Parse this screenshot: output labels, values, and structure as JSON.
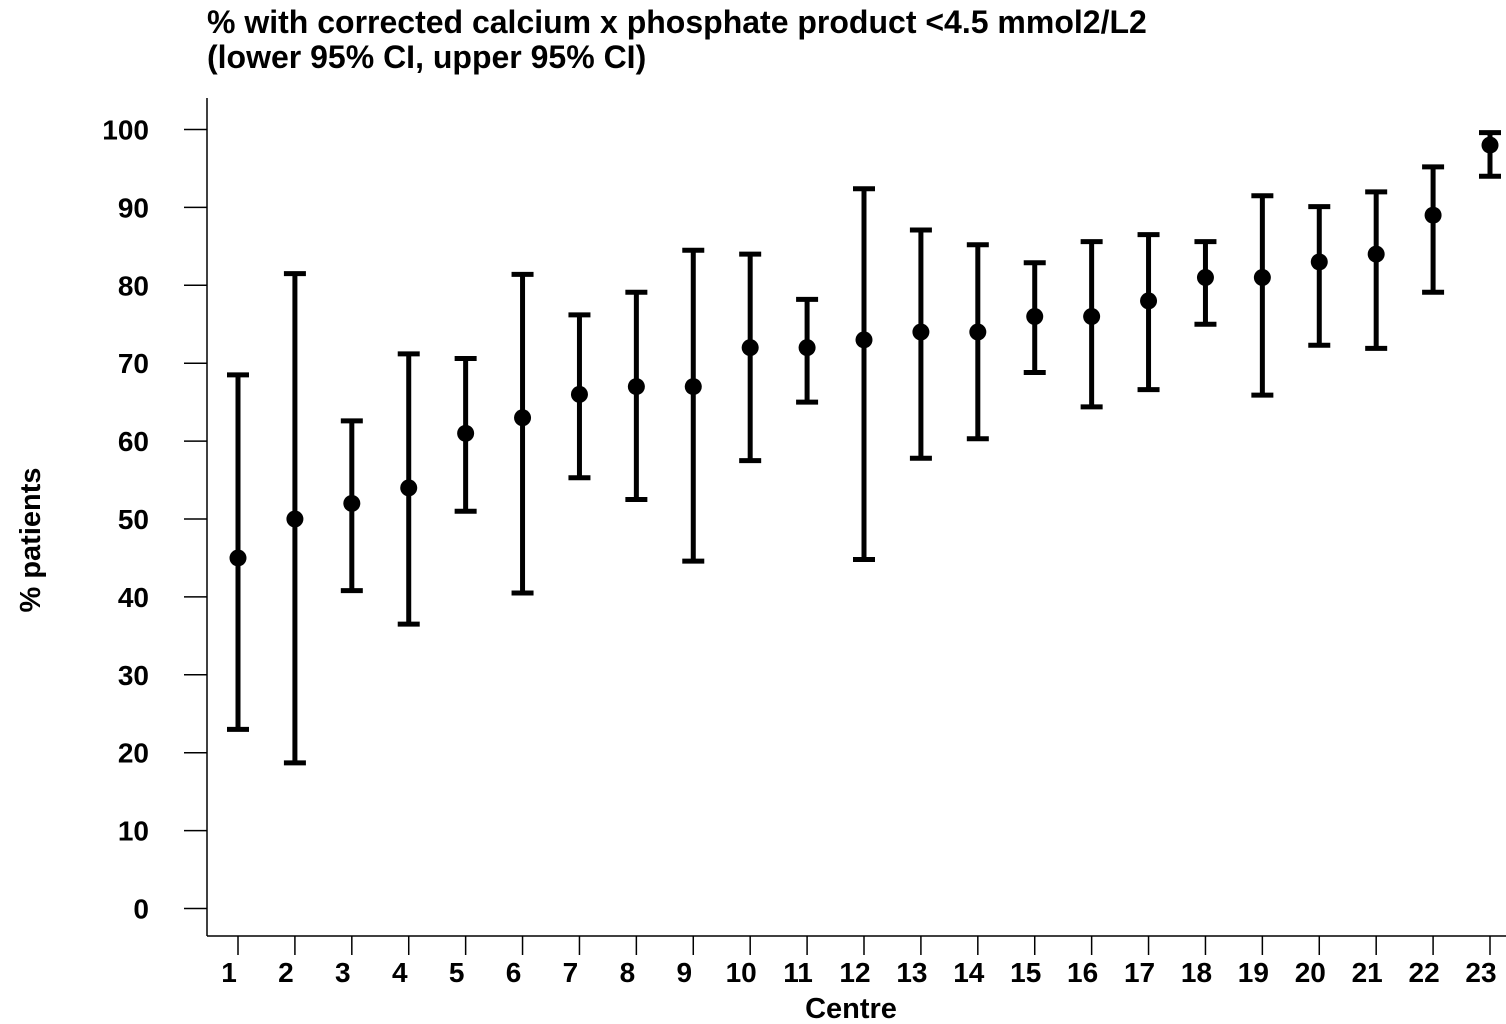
{
  "chart_data": {
    "type": "scatter",
    "title": "% with corrected calcium x phosphate product <4.5 mmol2/L2",
    "subtitle": "(lower 95% CI, upper 95% CI)",
    "xlabel": "Centre",
    "ylabel": "% patients",
    "ylim": [
      0,
      100
    ],
    "yticks": [
      0,
      10,
      20,
      30,
      40,
      50,
      60,
      70,
      80,
      90,
      100
    ],
    "grid": false,
    "categories": [
      "1",
      "2",
      "3",
      "4",
      "5",
      "6",
      "7",
      "8",
      "9",
      "10",
      "11",
      "12",
      "13",
      "14",
      "15",
      "16",
      "17",
      "18",
      "19",
      "20",
      "21",
      "22",
      "23"
    ],
    "values": [
      45,
      50,
      52,
      54,
      61,
      63,
      66,
      67,
      67,
      72,
      72,
      73,
      74,
      74,
      76,
      76,
      78,
      81,
      81,
      83,
      84,
      89,
      98
    ],
    "lower_ci": [
      23,
      18.7,
      40.8,
      36.5,
      51,
      40.5,
      55.3,
      52.5,
      44.6,
      57.5,
      65,
      44.8,
      57.8,
      60.3,
      68.8,
      64.4,
      66.6,
      75,
      65.9,
      72.3,
      71.9,
      79.1,
      94
    ],
    "upper_ci": [
      68.5,
      81.5,
      62.6,
      71.2,
      70.6,
      81.4,
      76.2,
      79.1,
      84.5,
      84,
      78.2,
      92.4,
      87.1,
      85.2,
      82.9,
      85.6,
      86.5,
      85.6,
      91.5,
      90.1,
      92,
      95.2,
      99.6
    ]
  }
}
